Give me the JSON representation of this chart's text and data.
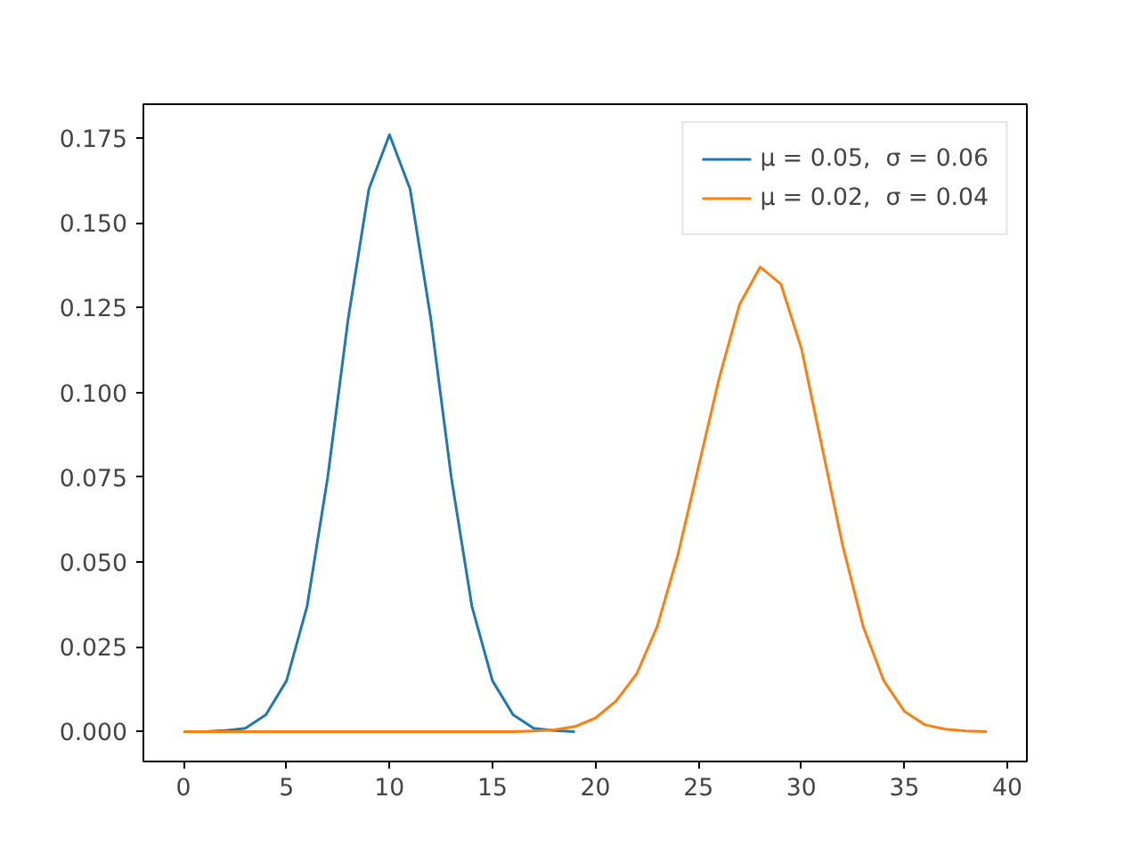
{
  "chart_data": {
    "type": "line",
    "xlim": [
      -1.95,
      40.95
    ],
    "ylim": [
      -0.0088,
      0.185
    ],
    "xticks": [
      0,
      5,
      10,
      15,
      20,
      25,
      30,
      35,
      40
    ],
    "yticks": [
      {
        "value": 0,
        "label": "0.000"
      },
      {
        "value": 0.025,
        "label": "0.025"
      },
      {
        "value": 0.05,
        "label": "0.050"
      },
      {
        "value": 0.075,
        "label": "0.075"
      },
      {
        "value": 0.1,
        "label": "0.100"
      },
      {
        "value": 0.125,
        "label": "0.125"
      },
      {
        "value": 0.15,
        "label": "0.150"
      },
      {
        "value": 0.175,
        "label": "0.175"
      }
    ],
    "grid": false,
    "legend": "top right",
    "marker": "none",
    "line_style": "solid",
    "series": [
      {
        "name": "μ = 0.05,  σ = 0.06",
        "color": "#1f77b4",
        "x": [
          0,
          1,
          2,
          3,
          4,
          5,
          6,
          7,
          8,
          9,
          10,
          11,
          12,
          13,
          14,
          15,
          16,
          17,
          18,
          19
        ],
        "values": [
          0,
          0,
          0.0003,
          0.001,
          0.005,
          0.015,
          0.037,
          0.075,
          0.122,
          0.16,
          0.176,
          0.16,
          0.122,
          0.075,
          0.037,
          0.015,
          0.005,
          0.001,
          0.0003,
          0
        ]
      },
      {
        "name": "μ = 0.02,  σ = 0.04",
        "color": "#ff7f0e",
        "x": [
          0,
          1,
          2,
          3,
          4,
          5,
          6,
          7,
          8,
          9,
          10,
          11,
          12,
          13,
          14,
          15,
          16,
          17,
          18,
          19,
          20,
          21,
          22,
          23,
          24,
          25,
          26,
          27,
          28,
          29,
          30,
          31,
          32,
          33,
          34,
          35,
          36,
          37,
          38,
          39
        ],
        "values": [
          0,
          0,
          0,
          0,
          0,
          0,
          0,
          0,
          0,
          0,
          0,
          0,
          0,
          0,
          0,
          0,
          0,
          0.0002,
          0.0005,
          0.0015,
          0.004,
          0.009,
          0.017,
          0.031,
          0.052,
          0.078,
          0.104,
          0.126,
          0.137,
          0.132,
          0.113,
          0.084,
          0.055,
          0.031,
          0.015,
          0.006,
          0.002,
          0.0007,
          0.0002,
          0
        ]
      }
    ]
  }
}
